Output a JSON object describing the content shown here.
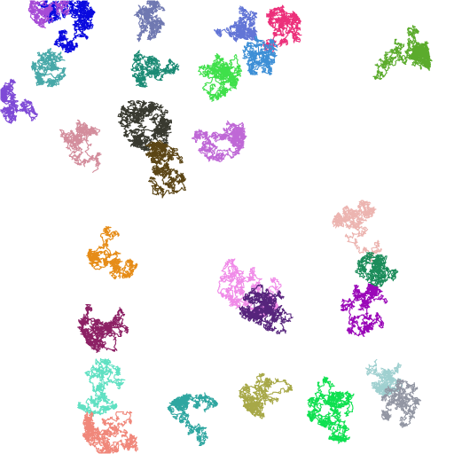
{
  "scene": {
    "description_visible_text": "",
    "background": "#ffffff",
    "walk_colors": [
      "#0a0adf",
      "#a64bd6",
      "#6f78b1",
      "#6275d6",
      "#ec2f7a",
      "#5bab2c",
      "#47a8a8",
      "#7e4ad6",
      "#1a8a74",
      "#3fe04a",
      "#3d8fd6",
      "#38392f",
      "#bf68d6",
      "#d38d9c",
      "#5b4515",
      "#e68c17",
      "#8c2064",
      "#f08ae8",
      "#ecb4b0",
      "#1b8c5a",
      "#56247c",
      "#9a07b8",
      "#5fe0c2",
      "#a7a847",
      "#9fd0d0",
      "#9296a3",
      "#f0877a",
      "#2ea6a0",
      "#0ee050"
    ]
  }
}
